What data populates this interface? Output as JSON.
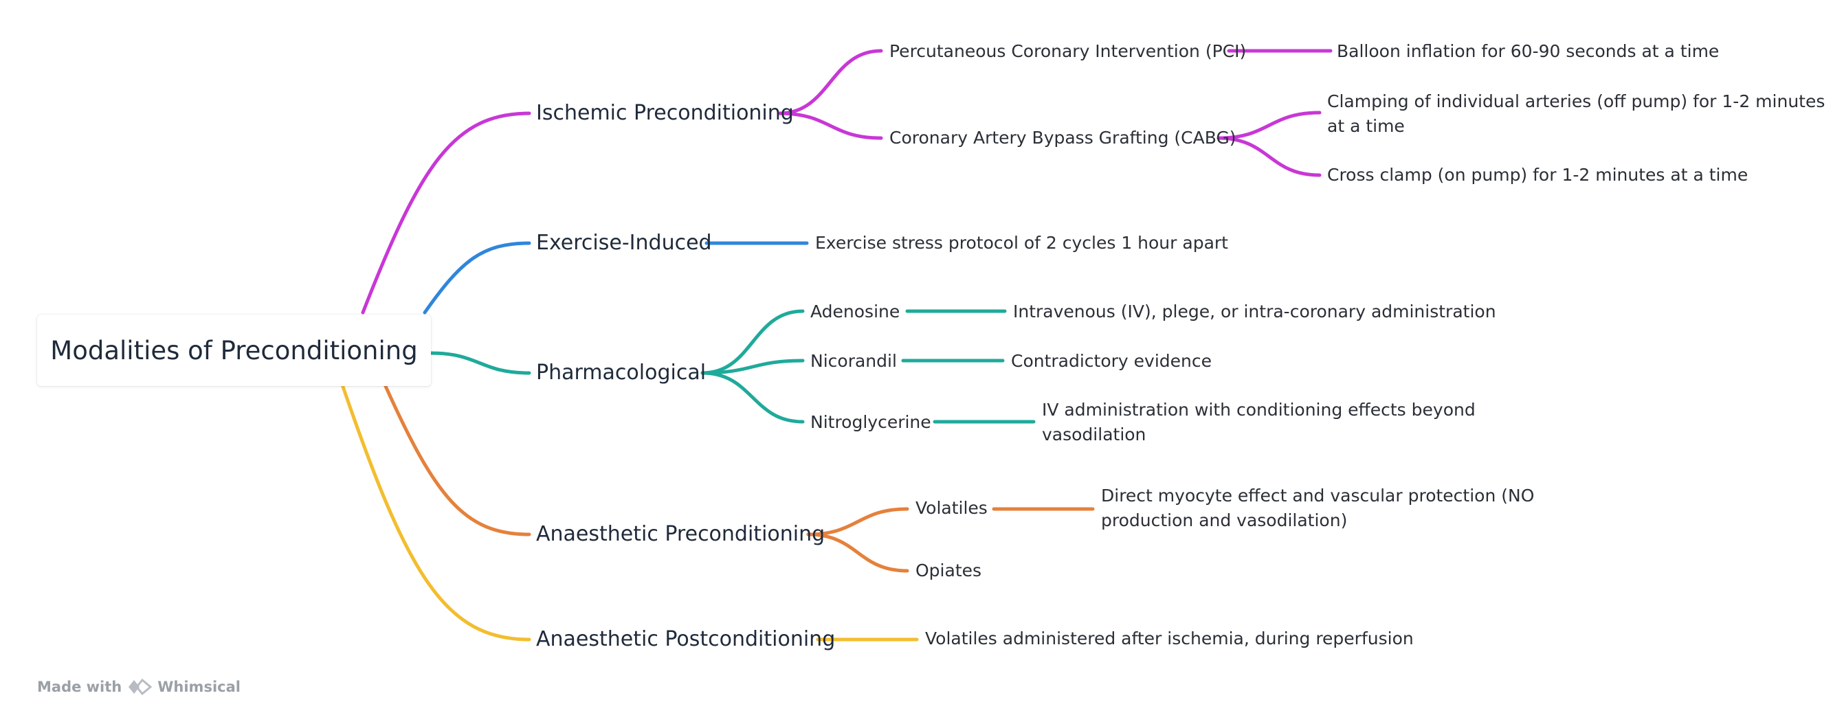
{
  "root": {
    "label": "Modalities of Preconditioning"
  },
  "branches": [
    {
      "label": "Ischemic Preconditioning",
      "color": "#c837d6",
      "children": [
        {
          "label": "Percutaneous Coronary Intervention (PCI)",
          "children": [
            "Balloon inflation for 60-90 seconds at a time"
          ]
        },
        {
          "label": "Coronary Artery Bypass Grafting (CABG)",
          "children": [
            "Clamping of individual arteries (off pump) for 1-2 minutes\nat a time",
            "Cross clamp (on pump) for 1-2 minutes at a time"
          ]
        }
      ]
    },
    {
      "label": "Exercise-Induced",
      "color": "#2f86dc",
      "children": [
        {
          "label": "Exercise stress protocol of 2 cycles 1 hour apart",
          "children": []
        }
      ]
    },
    {
      "label": "Pharmacological",
      "color": "#1faa9a",
      "children": [
        {
          "label": "Adenosine",
          "children": [
            "Intravenous (IV), plege, or intra-coronary administration"
          ]
        },
        {
          "label": "Nicorandil",
          "children": [
            "Contradictory evidence"
          ]
        },
        {
          "label": "Nitroglycerine",
          "children": [
            "IV administration with conditioning effects beyond\nvasodilation"
          ]
        }
      ]
    },
    {
      "label": "Anaesthetic Preconditioning",
      "color": "#e5813b",
      "children": [
        {
          "label": "Volatiles",
          "children": [
            "Direct myocyte effect and vascular protection (NO\nproduction and vasodilation)"
          ]
        },
        {
          "label": "Opiates",
          "children": []
        }
      ]
    },
    {
      "label": "Anaesthetic Postconditioning",
      "color": "#f3bd2e",
      "children": [
        {
          "label": "Volatiles administered after ischemia, during reperfusion",
          "children": []
        }
      ]
    }
  ],
  "watermark": {
    "prefix": "Made with",
    "brand": "Whimsical"
  }
}
